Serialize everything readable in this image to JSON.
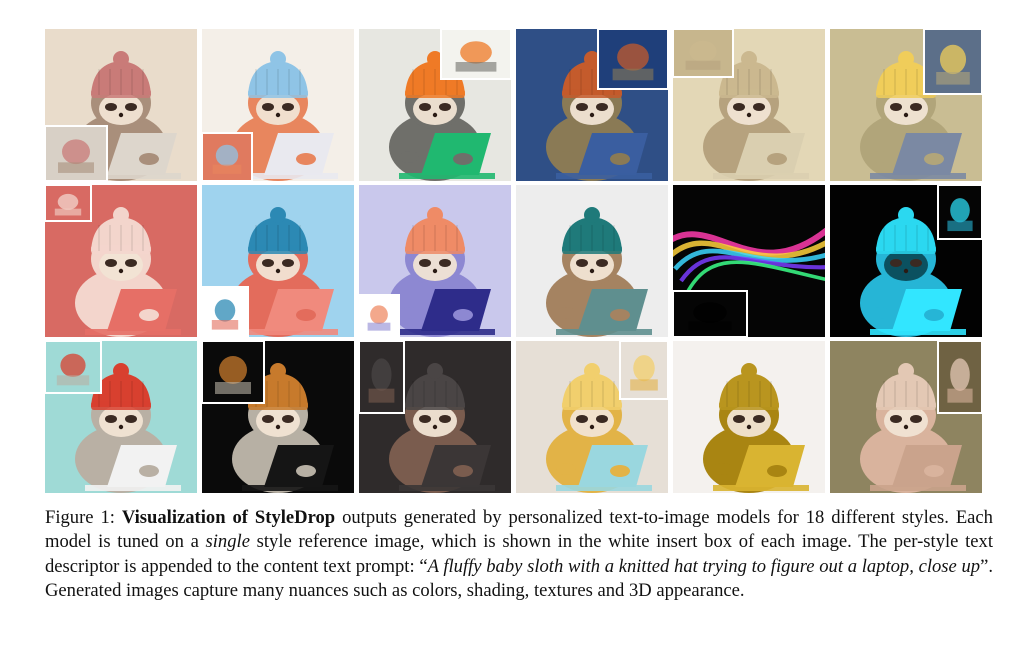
{
  "figure": {
    "label": "Figure 1:",
    "title": "Visualization of StyleDrop",
    "caption_part1": " outputs generated by personalized text-to-image models for 18 different styles. Each model is tuned on a ",
    "caption_emph1": "single",
    "caption_part2": " style reference image, which is shown in the white insert box of each image. The per-style text descriptor is appended to the content text prompt: “",
    "caption_prompt": "A fluffy baby sloth with a knitted hat trying to figure out a laptop, close up",
    "caption_part3": "”. Generated images capture many nuances such as colors, shading, textures and 3D appearance."
  },
  "panels": [
    {
      "bg": "#e9dccb",
      "hat": "#c97b78",
      "body": "#a98f7b",
      "laptop": "#ddd6cc",
      "insert_bg": "#d8d0c6"
    },
    {
      "bg": "#f4efe8",
      "hat": "#8fc4e6",
      "body": "#e8865e",
      "laptop": "#e9e9ef",
      "insert_bg": "#e07a5f"
    },
    {
      "bg": "#e7e7e1",
      "hat": "#ef7a26",
      "body": "#6f6f6a",
      "laptop": "#20b870",
      "insert_bg": "#f3f3ee"
    },
    {
      "bg": "#2f4f86",
      "hat": "#c45b2c",
      "body": "#8a7a55",
      "laptop": "#3a5ea0",
      "insert_bg": "#1f3f7a"
    },
    {
      "bg": "#e3d7b6",
      "hat": "#cbb88f",
      "body": "#b6a27e",
      "laptop": "#dacfb0",
      "insert_bg": "#c7b68d"
    },
    {
      "bg": "#c9bd93",
      "hat": "#f0cd5a",
      "body": "#b1a57a",
      "laptop": "#7b89a3",
      "insert_bg": "#5c6f89"
    },
    {
      "bg": "#d86a63",
      "hat": "#f3d5cc",
      "body": "#f3d5cc",
      "laptop": "#e66f66",
      "insert_bg": "#d86a63"
    },
    {
      "bg": "#9fd3ee",
      "hat": "#2c89b4",
      "body": "#e36c5c",
      "laptop": "#f08a7d",
      "insert_bg": "#ffffff"
    },
    {
      "bg": "#c9c8ec",
      "hat": "#ef8b66",
      "body": "#8d88d2",
      "laptop": "#2e2c8a",
      "insert_bg": "#ffffff"
    },
    {
      "bg": "#ededed",
      "hat": "#1f7a7a",
      "body": "#a58361",
      "laptop": "#5f8f8f",
      "insert_bg": "#ffffff"
    },
    {
      "bg": "#050505",
      "hat": "#000000",
      "body": "#000000",
      "laptop": "#000000",
      "insert_bg": "#050505"
    },
    {
      "bg": "#020202",
      "hat": "#2bd8f0",
      "body": "#26b5d6",
      "laptop": "#32e6ff",
      "insert_bg": "#050505"
    },
    {
      "bg": "#9fdad6",
      "hat": "#d8402f",
      "body": "#b9b0a4",
      "laptop": "#f2f2f2",
      "insert_bg": "#9fdad6"
    },
    {
      "bg": "#0a0a0a",
      "hat": "#c77a2c",
      "body": "#b7b0a4",
      "laptop": "#151515",
      "insert_bg": "#0a0a0a"
    },
    {
      "bg": "#2f2b2b",
      "hat": "#4a4545",
      "body": "#7a5c4e",
      "laptop": "#3b3636",
      "insert_bg": "#2f2b2b"
    },
    {
      "bg": "#e6dfd6",
      "hat": "#f1cf6d",
      "body": "#e2b347",
      "laptop": "#9ad7df",
      "insert_bg": "#e6dfd6"
    },
    {
      "bg": "#f4f1ee",
      "hat": "#b9951f",
      "body": "#a98512",
      "laptop": "#d9b431",
      "insert_bg": "#f4f1ee"
    },
    {
      "bg": "#8e8460",
      "hat": "#e3c8b4",
      "body": "#d9b39d",
      "laptop": "#caa38c",
      "insert_bg": "#6f6243"
    }
  ]
}
